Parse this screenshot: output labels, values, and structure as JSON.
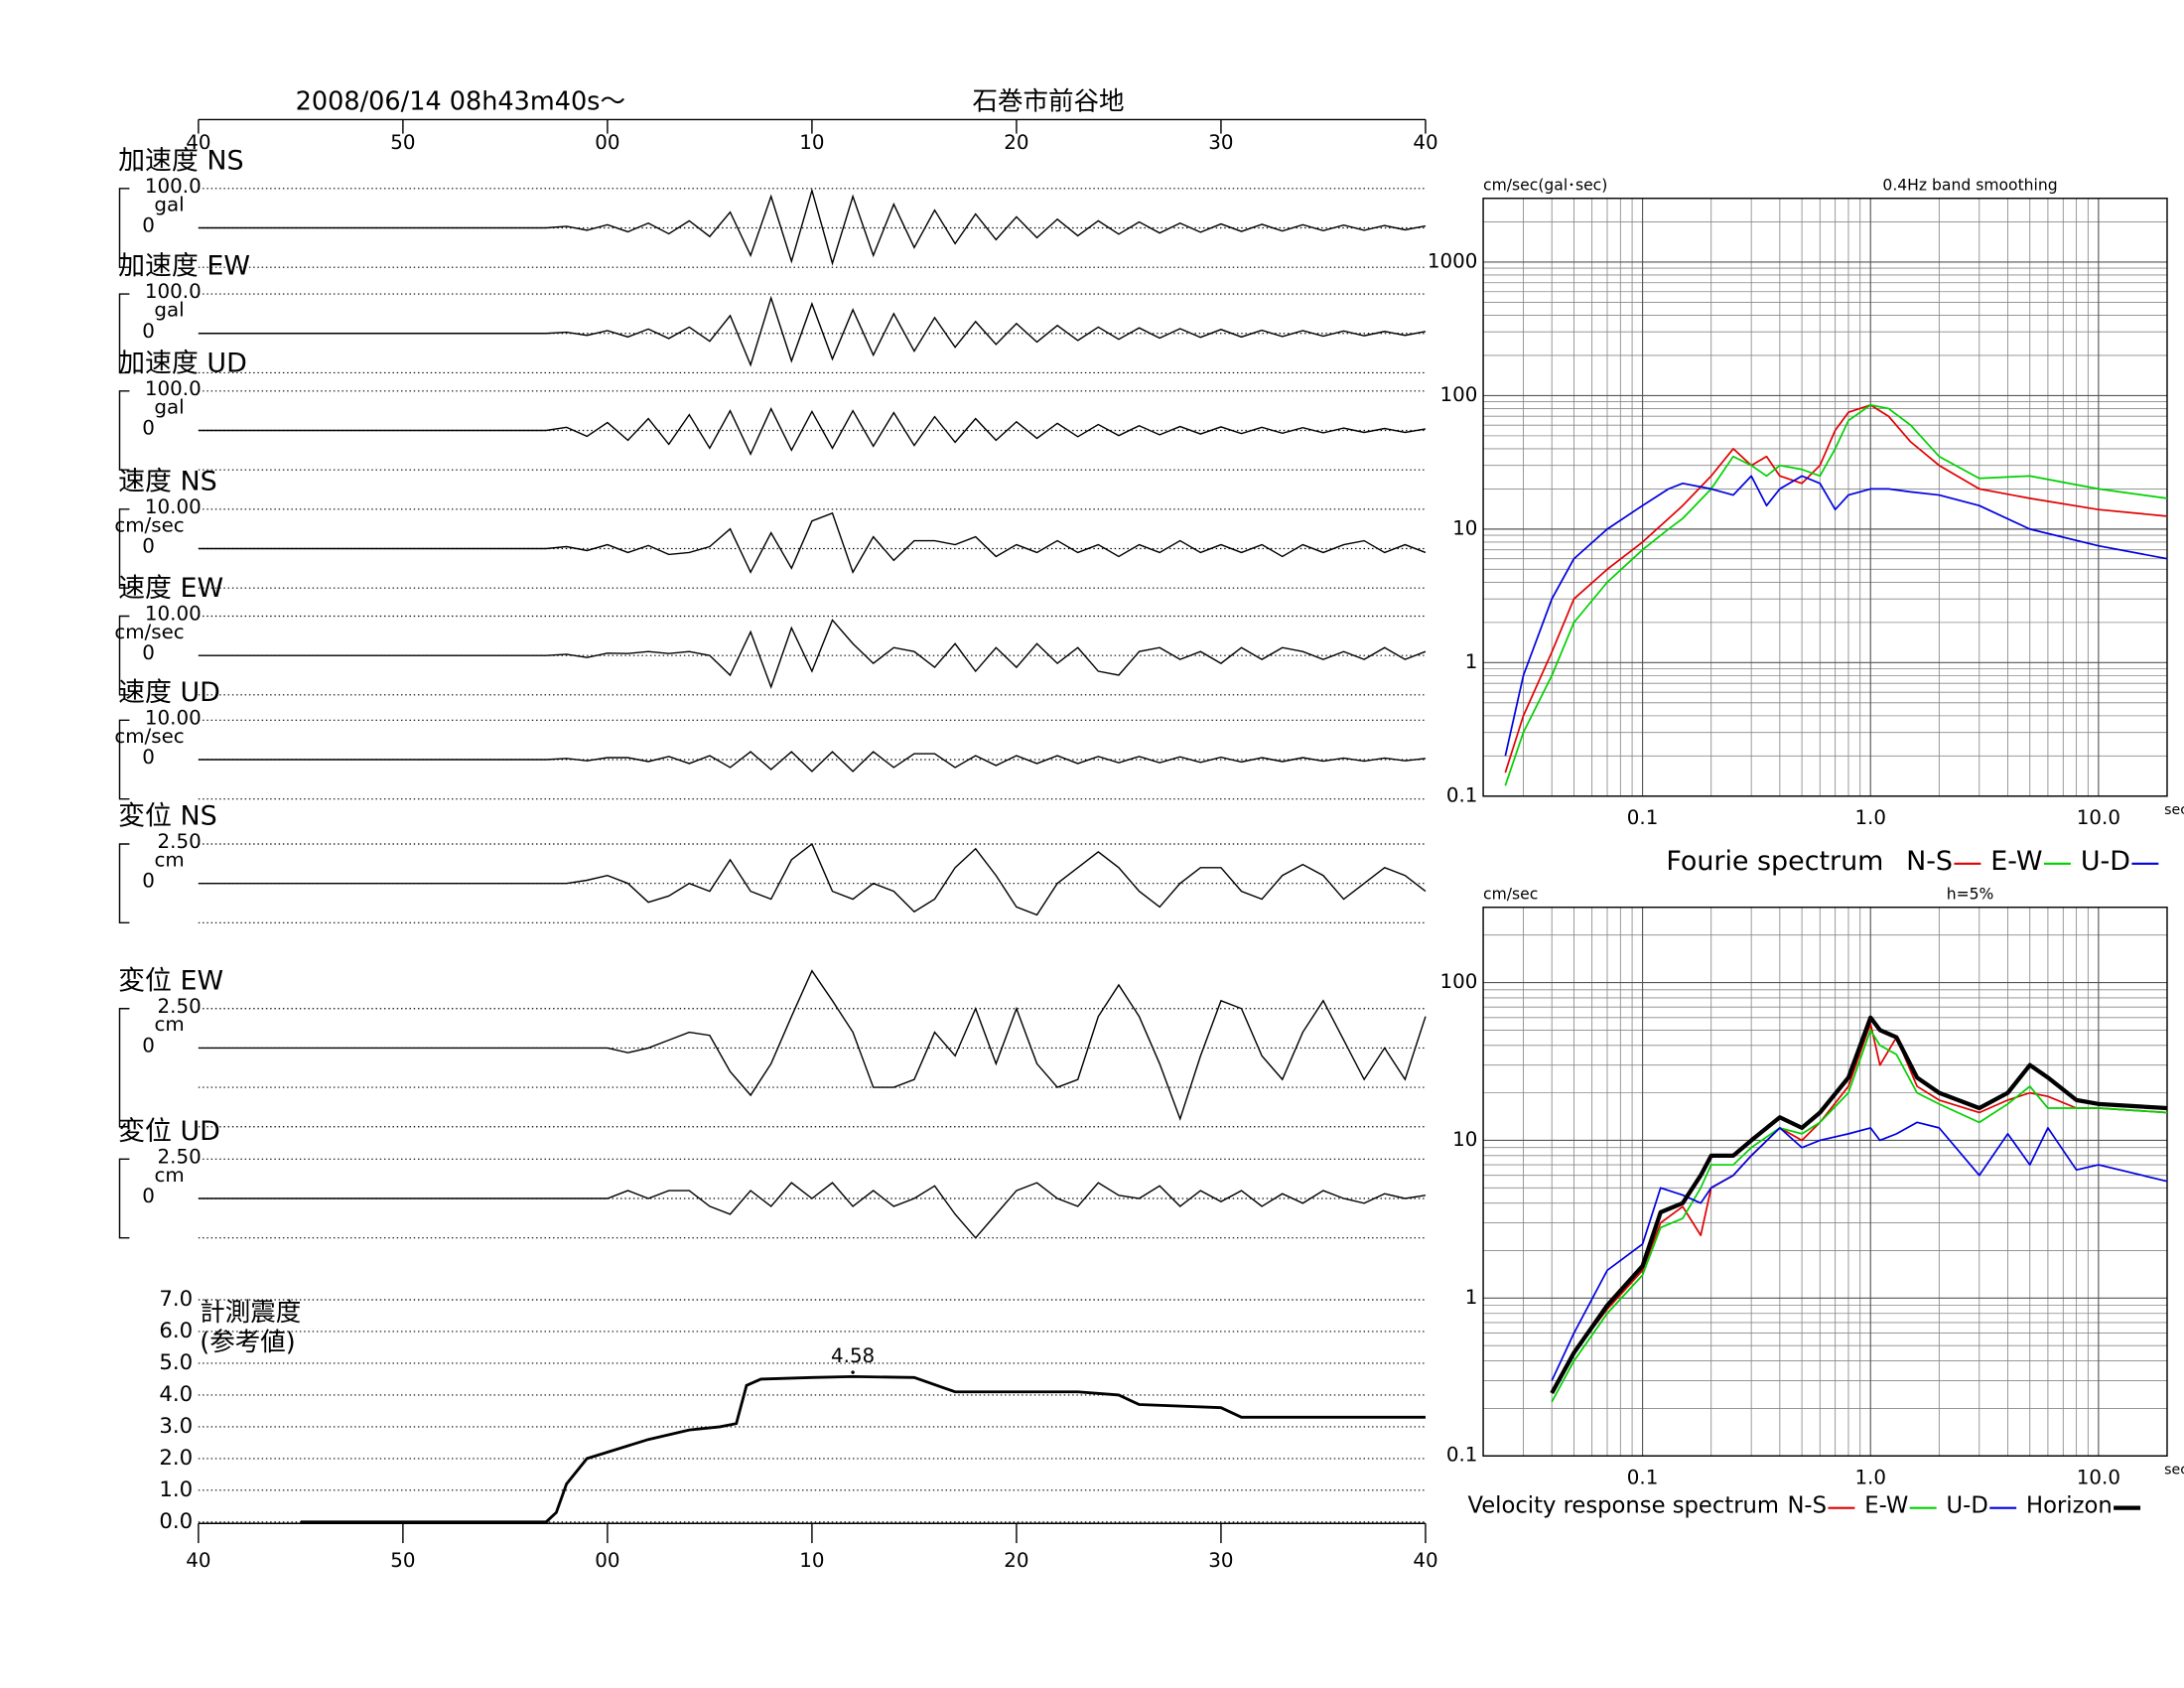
{
  "header": {
    "date": "2008/06/14  08h43m40s〜",
    "station": "石巻市前谷地"
  },
  "chart_data": [
    {
      "type": "waveform",
      "color": "#000000",
      "xlim": [
        0,
        60
      ],
      "xticks": [
        {
          "value": 0,
          "label": "40"
        },
        {
          "value": 10,
          "label": "50"
        },
        {
          "value": 20,
          "label": "00"
        },
        {
          "value": 30,
          "label": "10"
        },
        {
          "value": 40,
          "label": "20"
        },
        {
          "value": 50,
          "label": "30"
        },
        {
          "value": 60,
          "label": "40"
        }
      ],
      "x": [
        0,
        17,
        18,
        19,
        20,
        21,
        22,
        23,
        24,
        25,
        26,
        27,
        28,
        29,
        30,
        31,
        32,
        33,
        34,
        35,
        36,
        37,
        38,
        39,
        40,
        41,
        42,
        43,
        44,
        45,
        46,
        47,
        48,
        49,
        50,
        51,
        52,
        53,
        54,
        55,
        56,
        57,
        58,
        59,
        60
      ],
      "series": [
        {
          "name": "加速度 NS",
          "unit": "gal",
          "ylim": [
            -100,
            100
          ],
          "yticks": [
            {
              "value": 100,
              "label": "100.0"
            },
            0
          ],
          "gridlines": [
            100,
            0,
            -100
          ],
          "values": [
            0,
            0,
            4,
            -6,
            8,
            -10,
            12,
            -15,
            18,
            -22,
            40,
            -70,
            80,
            -85,
            95,
            -90,
            80,
            -70,
            60,
            -50,
            45,
            -40,
            35,
            -30,
            28,
            -25,
            22,
            -20,
            18,
            -16,
            15,
            -13,
            12,
            -11,
            10,
            -9,
            9,
            -8,
            8,
            -7,
            7,
            -6,
            6,
            -5,
            5
          ]
        },
        {
          "name": "加速度 EW",
          "unit": "gal",
          "ylim": [
            -100,
            100
          ],
          "yticks": [
            {
              "value": 100,
              "label": "100.0"
            },
            0
          ],
          "gridlines": [
            100,
            0,
            -100
          ],
          "values": [
            0,
            0,
            3,
            -5,
            7,
            -9,
            11,
            -13,
            16,
            -20,
            45,
            -80,
            90,
            -70,
            75,
            -65,
            60,
            -55,
            50,
            -45,
            40,
            -35,
            30,
            -28,
            25,
            -22,
            20,
            -18,
            16,
            -15,
            14,
            -12,
            12,
            -10,
            10,
            -9,
            8,
            -8,
            7,
            -7,
            6,
            -6,
            5,
            -5,
            5
          ]
        },
        {
          "name": "加速度 UD",
          "unit": "gal",
          "ylim": [
            -100,
            100
          ],
          "yticks": [
            {
              "value": 100,
              "label": "100.0"
            },
            0
          ],
          "gridlines": [
            100,
            0,
            -100
          ],
          "values": [
            0,
            0,
            8,
            -15,
            20,
            -25,
            30,
            -35,
            40,
            -45,
            50,
            -60,
            55,
            -50,
            48,
            -45,
            50,
            -40,
            45,
            -38,
            35,
            -30,
            30,
            -25,
            22,
            -20,
            18,
            -16,
            15,
            -13,
            12,
            -11,
            10,
            -9,
            9,
            -8,
            8,
            -7,
            7,
            -6,
            6,
            -5,
            5,
            -5,
            4
          ]
        },
        {
          "name": "速度 NS",
          "unit": "cm/sec",
          "ylim": [
            -10,
            10
          ],
          "yticks": [
            {
              "value": 10,
              "label": "10.00"
            },
            0
          ],
          "gridlines": [
            10,
            0,
            -10
          ],
          "values": [
            0,
            0,
            0.5,
            -0.5,
            1,
            -1,
            0.8,
            -1.5,
            -1,
            0.5,
            5,
            -6,
            4,
            -5,
            7,
            9,
            -6,
            3,
            -3,
            2,
            2,
            1,
            3,
            -2,
            1,
            -1,
            2,
            -1,
            1,
            -2,
            1,
            -1,
            2,
            -1,
            1,
            -1,
            1,
            -2,
            1,
            -1,
            1,
            2,
            -1,
            1,
            -1
          ]
        },
        {
          "name": "速度 EW",
          "unit": "cm/sec",
          "ylim": [
            -10,
            10
          ],
          "yticks": [
            {
              "value": 10,
              "label": "10.00"
            },
            0
          ],
          "gridlines": [
            10,
            0,
            -10
          ],
          "values": [
            0,
            0,
            0.3,
            -0.5,
            0.6,
            0.5,
            1,
            0.5,
            1,
            0,
            -5,
            6,
            -8,
            7,
            -4,
            9,
            3,
            -2,
            2,
            1,
            -3,
            3,
            -4,
            2,
            -3,
            3,
            -2,
            2,
            -4,
            -5,
            1,
            2,
            -1,
            1,
            -2,
            2,
            -1,
            2,
            1,
            -1,
            1,
            -1,
            2,
            -1,
            1
          ]
        },
        {
          "name": "速度 UD",
          "unit": "cm/sec",
          "ylim": [
            -10,
            10
          ],
          "yticks": [
            {
              "value": 10,
              "label": "10.00"
            },
            0
          ],
          "gridlines": [
            10,
            0,
            -10
          ],
          "values": [
            0,
            0,
            0.3,
            -0.3,
            0.5,
            0.5,
            -0.5,
            0.8,
            -1,
            1,
            -2,
            2,
            -2.5,
            2,
            -3,
            2,
            -3,
            2,
            -2,
            1.5,
            1.5,
            -2,
            1,
            -1.5,
            1,
            -1,
            1,
            -1,
            0.8,
            -0.8,
            0.8,
            -0.8,
            0.7,
            -0.7,
            0.6,
            -0.6,
            0.5,
            -0.5,
            0.5,
            -0.4,
            0.4,
            -0.4,
            0.4,
            -0.3,
            0.3
          ]
        },
        {
          "name": "変位 NS",
          "unit": "cm",
          "ylim": [
            -2.5,
            2.5
          ],
          "yticks": [
            {
              "value": 2.5,
              "label": "2.50"
            },
            0
          ],
          "gridlines": [
            2.5,
            0,
            -2.5
          ],
          "values": [
            0,
            0,
            0,
            0.2,
            0.5,
            0,
            -1.2,
            -0.8,
            0,
            -0.5,
            1.5,
            -0.5,
            -1,
            1.5,
            2.5,
            -0.5,
            -1,
            0,
            -0.5,
            -1.8,
            -1,
            1,
            2.2,
            0.5,
            -1.5,
            -2,
            0,
            1,
            2,
            1,
            -0.5,
            -1.5,
            0,
            1,
            1,
            -0.5,
            -1,
            0.5,
            1.2,
            0.5,
            -1,
            0,
            1,
            0.5,
            -0.5
          ]
        },
        {
          "name": "変位 EW",
          "unit": "cm",
          "ylim": [
            -2.5,
            2.5
          ],
          "yticks": [
            {
              "value": 2.5,
              "label": "2.50"
            },
            0
          ],
          "gridlines": [
            2.5,
            0,
            -2.5,
            -5
          ],
          "values": [
            0,
            0,
            0,
            0,
            0,
            -0.3,
            0,
            0.5,
            1,
            0.8,
            -1.5,
            -3,
            -1,
            2,
            4.9,
            3,
            1,
            -2.5,
            -2.5,
            -2,
            1,
            -0.5,
            2.5,
            -1,
            2.5,
            -1,
            -2.5,
            -2,
            2,
            4,
            2,
            -1,
            -4.5,
            -0.5,
            3,
            2.5,
            -0.5,
            -2,
            1,
            3,
            0.5,
            -2,
            0,
            -2,
            2
          ]
        },
        {
          "name": "変位 UD",
          "unit": "cm",
          "ylim": [
            -2.5,
            2.5
          ],
          "yticks": [
            {
              "value": 2.5,
              "label": "2.50"
            },
            0
          ],
          "gridlines": [
            2.5,
            0,
            -2.5
          ],
          "values": [
            0,
            0,
            0,
            0,
            0,
            0.5,
            0,
            0.5,
            0.5,
            -0.5,
            -1,
            0.5,
            -0.5,
            1,
            0,
            1,
            -0.5,
            0.5,
            -0.5,
            0,
            0.8,
            -1,
            -2.5,
            -1,
            0.5,
            1,
            0,
            -0.5,
            1,
            0.2,
            0,
            0.8,
            -0.5,
            0.5,
            -0.2,
            0.5,
            -0.5,
            0.3,
            -0.3,
            0.5,
            0,
            -0.3,
            0.3,
            0,
            0.2
          ]
        }
      ]
    },
    {
      "type": "step",
      "title": "計測震度",
      "subtitle": "(参考値)",
      "color": "#000000",
      "xlim": [
        0,
        60
      ],
      "xticks": [
        {
          "value": 0,
          "label": "40"
        },
        {
          "value": 10,
          "label": "50"
        },
        {
          "value": 20,
          "label": "00"
        },
        {
          "value": 30,
          "label": "10"
        },
        {
          "value": 40,
          "label": "20"
        },
        {
          "value": 50,
          "label": "30"
        },
        {
          "value": 60,
          "label": "40"
        }
      ],
      "ylim": [
        0,
        7
      ],
      "yticks": [
        {
          "value": 0,
          "label": "0.0"
        },
        {
          "value": 1,
          "label": "1.0"
        },
        {
          "value": 2,
          "label": "2.0"
        },
        {
          "value": 3,
          "label": "3.0"
        },
        {
          "value": 4,
          "label": "4.0"
        },
        {
          "value": 5,
          "label": "5.0"
        },
        {
          "value": 6,
          "label": "6.0"
        },
        {
          "value": 7,
          "label": "7.0"
        }
      ],
      "x": [
        5,
        17,
        17.5,
        18,
        19,
        20,
        22,
        24,
        25.5,
        26.3,
        26.8,
        27.5,
        30,
        32,
        35,
        37,
        43,
        45,
        46,
        50,
        51,
        60
      ],
      "values": [
        0,
        0,
        0.3,
        1.2,
        2.0,
        2.2,
        2.6,
        2.9,
        3.0,
        3.1,
        4.3,
        4.5,
        4.55,
        4.58,
        4.55,
        4.1,
        4.1,
        4.0,
        3.7,
        3.6,
        3.3,
        3.3
      ],
      "peak": {
        "x": 32,
        "value": 4.58
      }
    },
    {
      "type": "loglog",
      "ylabel": "cm/sec(gal･sec)",
      "note": "0.4Hz band smoothing",
      "xlabel": "sec",
      "legend_title": "Fourie spectrum",
      "log_x": true,
      "log_y": true,
      "grid": true,
      "xlim": [
        0.02,
        20
      ],
      "xticks": [
        0.1,
        {
          "value": 1,
          "label": "1.0"
        },
        {
          "value": 10,
          "label": "10.0"
        }
      ],
      "ylim": [
        0.1,
        3000
      ],
      "yticks": [
        0.1,
        1,
        10,
        100,
        1000
      ],
      "x": [
        0.025,
        0.03,
        0.04,
        0.05,
        0.07,
        0.1,
        0.13,
        0.15,
        0.2,
        0.25,
        0.3,
        0.35,
        0.4,
        0.5,
        0.6,
        0.7,
        0.8,
        1.0,
        1.2,
        1.5,
        2,
        3,
        5,
        10,
        20
      ],
      "series": [
        {
          "name": "N-S",
          "color": "#e00000",
          "values": [
            0.15,
            0.4,
            1.2,
            3,
            5,
            8,
            12,
            15,
            25,
            40,
            30,
            35,
            25,
            22,
            30,
            55,
            75,
            85,
            70,
            45,
            30,
            20,
            17,
            14,
            12.5
          ]
        },
        {
          "name": "E-W",
          "color": "#00d000",
          "values": [
            0.12,
            0.3,
            0.8,
            2,
            4,
            7,
            10,
            12,
            20,
            35,
            30,
            25,
            30,
            28,
            25,
            40,
            65,
            85,
            80,
            60,
            35,
            24,
            25,
            20,
            17
          ]
        },
        {
          "name": "U-D",
          "color": "#0000e0",
          "values": [
            0.2,
            0.8,
            3,
            6,
            10,
            15,
            20,
            22,
            20,
            18,
            25,
            15,
            20,
            25,
            22,
            14,
            18,
            20,
            20,
            19,
            18,
            15,
            10,
            7.5,
            6
          ]
        }
      ]
    },
    {
      "type": "loglog",
      "ylabel": "cm/sec",
      "note": "h=5%",
      "xlabel": "sec",
      "legend_title": "Velocity response spectrum",
      "log_x": true,
      "log_y": true,
      "grid": true,
      "xlim": [
        0.02,
        20
      ],
      "xticks": [
        0.1,
        {
          "value": 1,
          "label": "1.0"
        },
        {
          "value": 10,
          "label": "10.0"
        }
      ],
      "ylim": [
        0.1,
        300
      ],
      "yticks": [
        0.1,
        1,
        10,
        100
      ],
      "x": [
        0.04,
        0.05,
        0.07,
        0.1,
        0.12,
        0.15,
        0.18,
        0.2,
        0.25,
        0.3,
        0.4,
        0.5,
        0.6,
        0.8,
        1.0,
        1.1,
        1.3,
        1.6,
        2,
        3,
        4,
        5,
        6,
        8,
        10,
        20
      ],
      "series": [
        {
          "name": "N-S",
          "color": "#e00000",
          "values": [
            0.25,
            0.45,
            0.85,
            1.5,
            3,
            3.8,
            2.5,
            5,
            6,
            8,
            12,
            10,
            13,
            22,
            55,
            30,
            45,
            22,
            18,
            15,
            18,
            20,
            19,
            16,
            16,
            15
          ]
        },
        {
          "name": "E-W",
          "color": "#00d000",
          "values": [
            0.22,
            0.4,
            0.8,
            1.4,
            2.8,
            3.2,
            5,
            7,
            7,
            9,
            12,
            11,
            13,
            20,
            50,
            40,
            35,
            20,
            17,
            13,
            17,
            22,
            16,
            16,
            16,
            15
          ]
        },
        {
          "name": "U-D",
          "color": "#0000e0",
          "values": [
            0.3,
            0.6,
            1.5,
            2.2,
            5,
            4.5,
            4,
            5,
            6,
            8,
            12,
            9,
            10,
            11,
            12,
            10,
            11,
            13,
            12,
            6,
            11,
            7,
            12,
            6.5,
            7,
            5.5
          ]
        },
        {
          "name": "Horizon",
          "color": "#000000",
          "width": 3,
          "values": [
            0.25,
            0.45,
            0.9,
            1.6,
            3.5,
            4,
            6,
            8,
            8,
            10,
            14,
            12,
            15,
            25,
            60,
            50,
            45,
            25,
            20,
            16,
            20,
            30,
            25,
            18,
            17,
            16
          ]
        }
      ]
    }
  ]
}
